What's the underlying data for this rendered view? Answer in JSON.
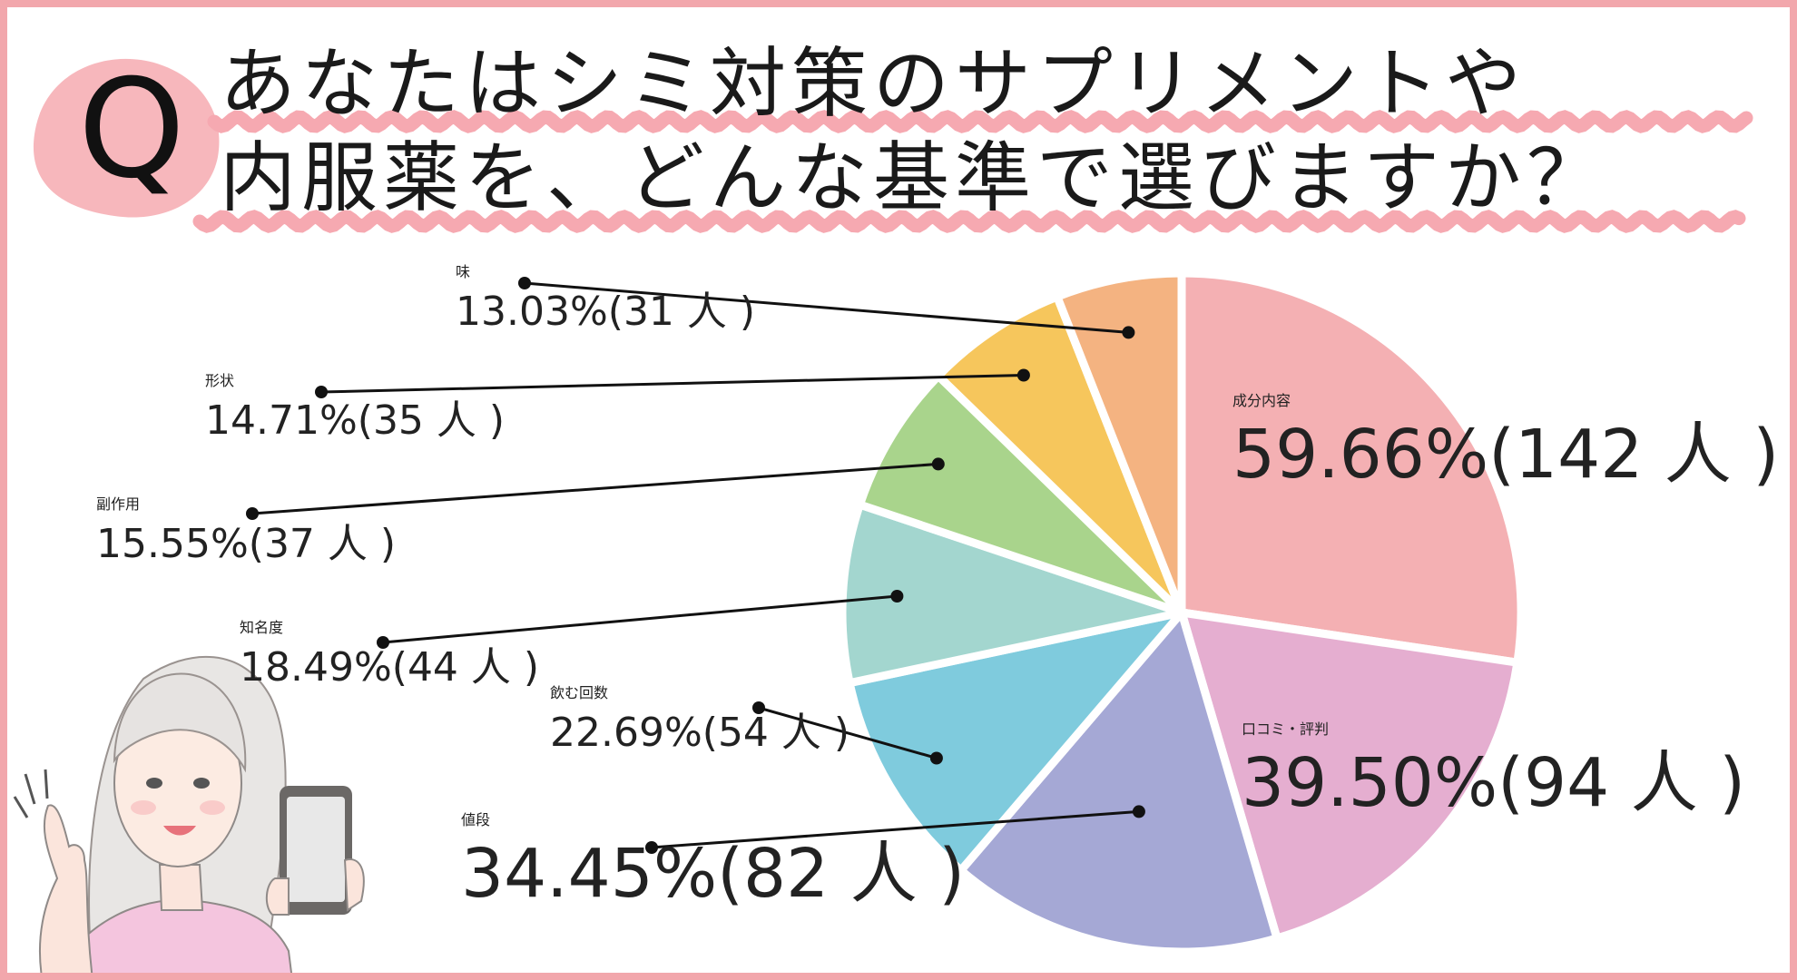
{
  "header": {
    "q_badge": "Q",
    "title_line_1": "あなたはシミ対策のサプリメントや",
    "title_line_2": "内服薬を、どんな基準で選びますか？"
  },
  "colors": {
    "border": "#f2a7ac",
    "wave": "#f6a9b1",
    "badge": "#f7b7bc"
  },
  "illustration": "woman-holding-smartphone",
  "chart_data": {
    "type": "pie",
    "title": "あなたはシミ対策のサプリメントや内服薬を、どんな基準で選びますか？",
    "unit": "%",
    "slices": [
      {
        "name": "成分内容",
        "percent": 59.66,
        "count": 142,
        "label": "59.66%(142 人 )",
        "color": "#f4b0b3"
      },
      {
        "name": "口コミ・評判",
        "percent": 39.5,
        "count": 94,
        "label": "39.50%(94 人 )",
        "color": "#e5aed0"
      },
      {
        "name": "値段",
        "percent": 34.45,
        "count": 82,
        "label": "34.45%(82 人 )",
        "color": "#a5a8d5"
      },
      {
        "name": "飲む回数",
        "percent": 22.69,
        "count": 54,
        "label": "22.69%(54 人 )",
        "color": "#7fcbdd"
      },
      {
        "name": "知名度",
        "percent": 18.49,
        "count": 44,
        "label": "18.49%(44 人 )",
        "color": "#a3d6cf"
      },
      {
        "name": "副作用",
        "percent": 15.55,
        "count": 37,
        "label": "15.55%(37 人 )",
        "color": "#a9d48c"
      },
      {
        "name": "形状",
        "percent": 14.71,
        "count": 35,
        "label": "14.71%(35 人 )",
        "color": "#f6c65c"
      },
      {
        "name": "味",
        "percent": 13.03,
        "count": 31,
        "label": "13.03%(31 人 )",
        "color": "#f4b381"
      }
    ]
  }
}
